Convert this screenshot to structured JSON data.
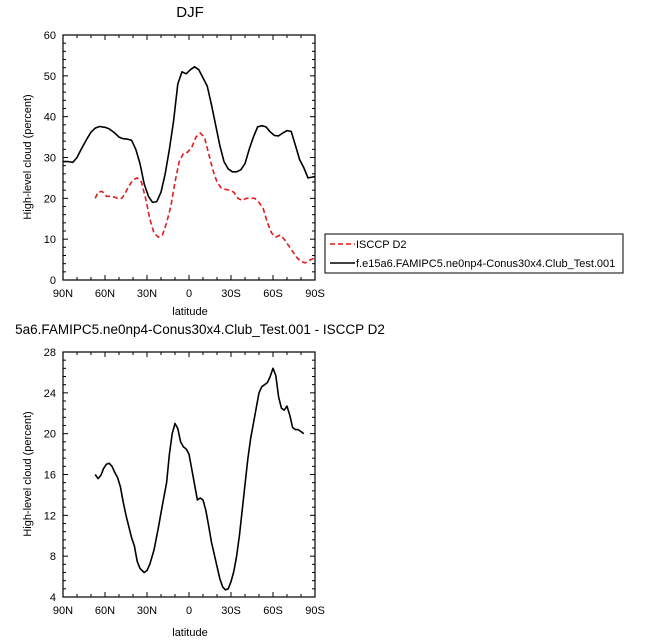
{
  "chart_data": [
    {
      "type": "line",
      "title": "DJF",
      "xlabel": "latitude",
      "ylabel": "High-level cloud (percent)",
      "xlim": [
        90,
        -90
      ],
      "ylim": [
        0,
        60
      ],
      "x_ticks": [
        90,
        60,
        30,
        0,
        -30,
        -60,
        -90
      ],
      "x_tick_labels": [
        "90N",
        "60N",
        "30N",
        "0",
        "30S",
        "60S",
        "90S"
      ],
      "y_ticks": [
        0,
        10,
        20,
        30,
        40,
        50,
        60
      ],
      "y_tick_labels": [
        "0",
        "10",
        "20",
        "30",
        "40",
        "50",
        "60"
      ],
      "legend_position": "outside-right",
      "series": [
        {
          "name": "ISCCP D2",
          "color": "#e41a1c",
          "dash": "dashed",
          "points": [
            [
              67,
              20
            ],
            [
              65,
              21.5
            ],
            [
              62,
              21.7
            ],
            [
              59,
              20.5
            ],
            [
              55,
              20.5
            ],
            [
              51,
              20
            ],
            [
              48,
              20
            ],
            [
              46,
              21
            ],
            [
              43,
              23
            ],
            [
              40,
              24.5
            ],
            [
              37,
              25
            ],
            [
              34,
              24
            ],
            [
              31,
              20
            ],
            [
              28,
              15
            ],
            [
              25,
              11.5
            ],
            [
              22,
              10.5
            ],
            [
              19,
              11
            ],
            [
              16,
              14
            ],
            [
              13,
              18
            ],
            [
              10,
              24
            ],
            [
              7,
              29
            ],
            [
              4,
              31
            ],
            [
              1,
              31.3
            ],
            [
              -2,
              32.5
            ],
            [
              -5,
              35
            ],
            [
              -8,
              36
            ],
            [
              -11,
              35
            ],
            [
              -14,
              31
            ],
            [
              -17,
              27
            ],
            [
              -20,
              24
            ],
            [
              -23,
              22.5
            ],
            [
              -26,
              22.2
            ],
            [
              -29,
              22
            ],
            [
              -32,
              21.5
            ],
            [
              -35,
              20
            ],
            [
              -38,
              19.5
            ],
            [
              -41,
              20
            ],
            [
              -44,
              20
            ],
            [
              -47,
              20
            ],
            [
              -50,
              19
            ],
            [
              -53,
              17.5
            ],
            [
              -56,
              14
            ],
            [
              -59,
              11.5
            ],
            [
              -62,
              10.5
            ],
            [
              -65,
              11
            ],
            [
              -68,
              10
            ],
            [
              -71,
              8.5
            ],
            [
              -74,
              7
            ],
            [
              -77,
              5.5
            ],
            [
              -80,
              4.5
            ],
            [
              -83,
              4.2
            ],
            [
              -86,
              4.8
            ],
            [
              -89,
              5.3
            ]
          ]
        },
        {
          "name": "f.e15a6.FAMIPC5.ne0np4-Conus30x4.Club_Test.001",
          "color": "#000000",
          "dash": "solid",
          "points": [
            [
              90,
              29
            ],
            [
              86,
              29
            ],
            [
              83,
              28.8
            ],
            [
              80,
              30
            ],
            [
              77,
              32
            ],
            [
              73,
              34.5
            ],
            [
              70,
              36.2
            ],
            [
              67,
              37.2
            ],
            [
              64,
              37.6
            ],
            [
              60,
              37.4
            ],
            [
              57,
              37
            ],
            [
              53,
              36
            ],
            [
              50,
              35
            ],
            [
              47,
              34.6
            ],
            [
              44,
              34.5
            ],
            [
              41,
              34.2
            ],
            [
              38,
              32
            ],
            [
              35,
              28.5
            ],
            [
              32,
              23.5
            ],
            [
              29,
              20.5
            ],
            [
              26,
              19
            ],
            [
              23,
              19.2
            ],
            [
              20,
              21.5
            ],
            [
              17,
              26
            ],
            [
              14,
              32
            ],
            [
              11,
              39
            ],
            [
              8,
              48
            ],
            [
              5,
              51
            ],
            [
              2,
              50.5
            ],
            [
              -1,
              51.5
            ],
            [
              -4,
              52.2
            ],
            [
              -7,
              51.5
            ],
            [
              -10,
              49.5
            ],
            [
              -13,
              47.5
            ],
            [
              -16,
              43
            ],
            [
              -19,
              38
            ],
            [
              -22,
              33
            ],
            [
              -25,
              29
            ],
            [
              -28,
              27.2
            ],
            [
              -31,
              26.5
            ],
            [
              -34,
              26.5
            ],
            [
              -37,
              27
            ],
            [
              -40,
              28.5
            ],
            [
              -43,
              32
            ],
            [
              -46,
              35
            ],
            [
              -49,
              37.5
            ],
            [
              -52,
              37.8
            ],
            [
              -55,
              37.5
            ],
            [
              -58,
              36.3
            ],
            [
              -61,
              35.4
            ],
            [
              -64,
              35.3
            ],
            [
              -67,
              36
            ],
            [
              -70,
              36.6
            ],
            [
              -73,
              36.4
            ],
            [
              -76,
              33
            ],
            [
              -79,
              29.5
            ],
            [
              -82,
              27.5
            ],
            [
              -85,
              25
            ],
            [
              -88,
              25.2
            ],
            [
              -90,
              25.3
            ]
          ]
        }
      ]
    },
    {
      "type": "line",
      "title": "5a6.FAMIPC5.ne0np4-Conus30x4.Club_Test.001 - ISCCP D2",
      "xlabel": "latitude",
      "ylabel": "High-level cloud (percent)",
      "xlim": [
        90,
        -90
      ],
      "ylim": [
        4,
        28
      ],
      "x_ticks": [
        90,
        60,
        30,
        0,
        -30,
        -60,
        -90
      ],
      "x_tick_labels": [
        "90N",
        "60N",
        "30N",
        "0",
        "30S",
        "60S",
        "90S"
      ],
      "y_ticks": [
        4,
        8,
        12,
        16,
        20,
        24,
        28
      ],
      "y_tick_labels": [
        "4",
        "8",
        "12",
        "16",
        "20",
        "24",
        "28"
      ],
      "series": [
        {
          "color": "#000000",
          "dash": "solid",
          "points": [
            [
              67,
              16
            ],
            [
              65,
              15.6
            ],
            [
              63,
              15.9
            ],
            [
              61,
              16.6
            ],
            [
              59,
              17
            ],
            [
              57,
              17.1
            ],
            [
              55,
              16.8
            ],
            [
              53,
              16.2
            ],
            [
              51,
              15.7
            ],
            [
              49,
              14.8
            ],
            [
              47,
              13.3
            ],
            [
              45,
              12
            ],
            [
              43,
              10.9
            ],
            [
              41,
              9.8
            ],
            [
              39,
              9
            ],
            [
              37,
              7.5
            ],
            [
              35,
              6.8
            ],
            [
              32,
              6.4
            ],
            [
              30,
              6.6
            ],
            [
              28,
              7.2
            ],
            [
              25,
              8.6
            ],
            [
              22,
              10.7
            ],
            [
              19,
              13
            ],
            [
              16,
              15.2
            ],
            [
              14,
              18
            ],
            [
              12,
              20
            ],
            [
              10,
              21
            ],
            [
              8,
              20.5
            ],
            [
              6,
              19.2
            ],
            [
              4,
              18.7
            ],
            [
              2,
              18.5
            ],
            [
              0,
              18
            ],
            [
              -2,
              16.5
            ],
            [
              -4,
              15
            ],
            [
              -6,
              13.5
            ],
            [
              -8,
              13.7
            ],
            [
              -10,
              13.5
            ],
            [
              -12,
              12.5
            ],
            [
              -14,
              11
            ],
            [
              -16,
              9.4
            ],
            [
              -18,
              8.2
            ],
            [
              -20,
              7
            ],
            [
              -22,
              5.8
            ],
            [
              -24,
              5
            ],
            [
              -26,
              4.7
            ],
            [
              -28,
              4.8
            ],
            [
              -30,
              5.5
            ],
            [
              -32,
              6.5
            ],
            [
              -34,
              8
            ],
            [
              -36,
              10
            ],
            [
              -38,
              12.5
            ],
            [
              -40,
              15
            ],
            [
              -42,
              17.5
            ],
            [
              -44,
              19.5
            ],
            [
              -46,
              21
            ],
            [
              -48,
              22.5
            ],
            [
              -50,
              24
            ],
            [
              -52,
              24.6
            ],
            [
              -54,
              24.8
            ],
            [
              -56,
              25
            ],
            [
              -58,
              25.6
            ],
            [
              -60,
              26.4
            ],
            [
              -62,
              25.7
            ],
            [
              -64,
              23.6
            ],
            [
              -66,
              22.5
            ],
            [
              -68,
              22.3
            ],
            [
              -70,
              22.7
            ],
            [
              -72,
              21.8
            ],
            [
              -74,
              20.6
            ],
            [
              -76,
              20.4
            ],
            [
              -78,
              20.4
            ],
            [
              -80,
              20.2
            ],
            [
              -82,
              20
            ]
          ]
        }
      ]
    }
  ]
}
